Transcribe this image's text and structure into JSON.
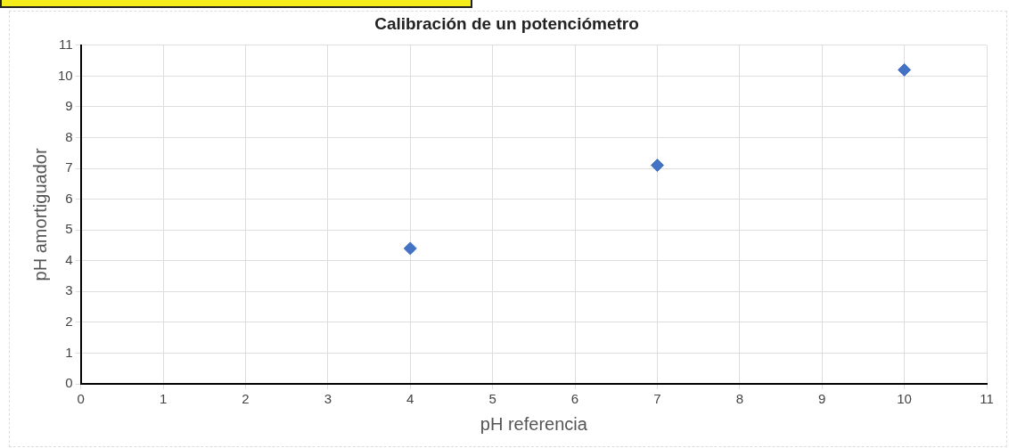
{
  "chart_data": {
    "type": "scatter",
    "title": "Calibración de un potenciómetro",
    "xlabel": "pH referencia",
    "ylabel": "pH amortiguador",
    "x": [
      4,
      7,
      10
    ],
    "series": [
      {
        "color": "#4472c4",
        "values": [
          4.4,
          7.1,
          10.2
        ]
      }
    ],
    "xlim": [
      0,
      11
    ],
    "xticks": [
      0,
      1,
      2,
      3,
      4,
      5,
      6,
      7,
      8,
      9,
      10,
      11
    ],
    "ylim": [
      0,
      11
    ],
    "yticks": [
      0,
      1,
      2,
      3,
      4,
      5,
      6,
      7,
      8,
      9,
      10,
      11
    ],
    "grid": true,
    "marker": "diamond",
    "legend": false
  }
}
